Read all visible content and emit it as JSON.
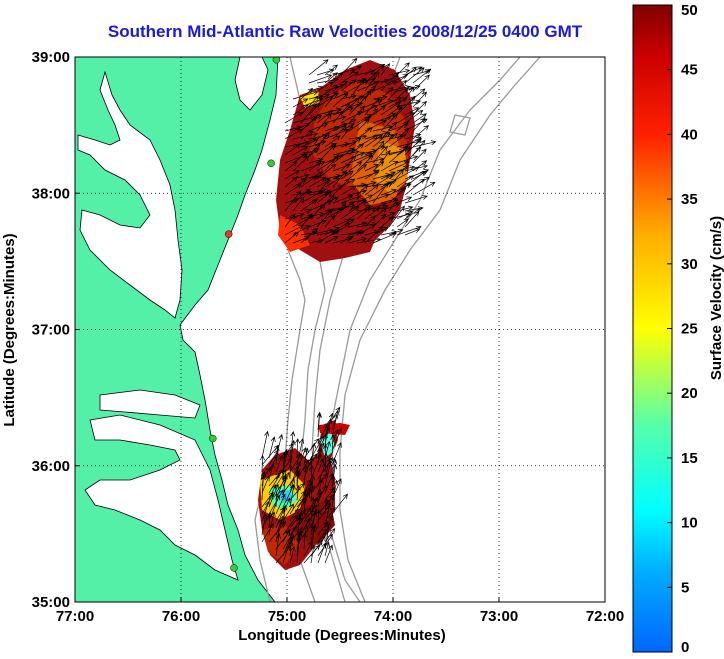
{
  "title": "Southern Mid-Atlantic Raw Velocities 2008/12/25 0400 GMT",
  "map": {
    "xlabel": "Longitude (Degrees:Minutes)",
    "ylabel": "Latitude (Degrees:Minutes)",
    "lon_range": [
      -77,
      -72
    ],
    "lat_range": [
      35,
      39
    ],
    "lon_ticks": [
      {
        "value": -77,
        "label": "77:00"
      },
      {
        "value": -76,
        "label": "76:00"
      },
      {
        "value": -75,
        "label": "75:00"
      },
      {
        "value": -74,
        "label": "74:00"
      },
      {
        "value": -73,
        "label": "73:00"
      },
      {
        "value": -72,
        "label": "72:00"
      }
    ],
    "lat_ticks": [
      {
        "value": 35,
        "label": "35:00"
      },
      {
        "value": 36,
        "label": "36:00"
      },
      {
        "value": 37,
        "label": "37:00"
      },
      {
        "value": 38,
        "label": "38:00"
      },
      {
        "value": 39,
        "label": "39:00"
      }
    ],
    "grid": "dotted",
    "land_color": "#55f0a8",
    "bathymetry_color": "#9a9a9a",
    "station_color": "#33cc33",
    "station_highlight_color": "#ee3333"
  },
  "colorbar": {
    "label": "Surface Velocity (cm/s)",
    "range": [
      0,
      50
    ],
    "ticks": [
      0,
      5,
      10,
      15,
      20,
      25,
      30,
      35,
      40,
      45,
      50
    ],
    "colormap": "jet"
  },
  "chart_data": {
    "type": "vector-field",
    "units": "cm/s",
    "regions": [
      {
        "name": "north",
        "lon_range": [
          -75.1,
          -73.7
        ],
        "lat_range": [
          37.5,
          38.9
        ],
        "typical_speed": 45,
        "speed_range": [
          32,
          50
        ]
      },
      {
        "name": "south",
        "lon_range": [
          -75.3,
          -74.5
        ],
        "lat_range": [
          35.3,
          36.5
        ],
        "typical_speed": 40,
        "speed_range": [
          10,
          50
        ]
      }
    ],
    "stations": [
      {
        "lon": -75.1,
        "lat": 38.98
      },
      {
        "lon": -75.15,
        "lat": 38.22
      },
      {
        "lon": -75.55,
        "lat": 37.7
      },
      {
        "lon": -75.7,
        "lat": 36.2
      },
      {
        "lon": -75.5,
        "lat": 35.25
      }
    ]
  }
}
